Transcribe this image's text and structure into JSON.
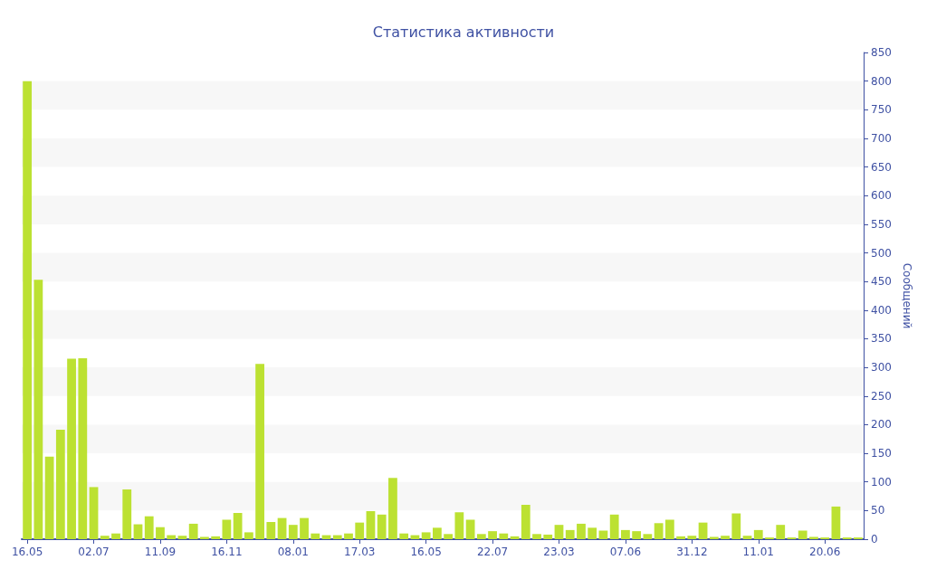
{
  "chart_data": {
    "type": "bar",
    "title": "Статистика активности",
    "ylabel": "Сообщений",
    "categories": [
      "16.05",
      null,
      null,
      null,
      null,
      null,
      "02.07",
      null,
      null,
      null,
      null,
      null,
      "11.09",
      null,
      null,
      null,
      null,
      null,
      "16.11",
      null,
      null,
      null,
      null,
      null,
      "08.01",
      null,
      null,
      null,
      null,
      null,
      "17.03",
      null,
      null,
      null,
      null,
      null,
      "16.05",
      null,
      null,
      null,
      null,
      null,
      "22.07",
      null,
      null,
      null,
      null,
      null,
      "23.03",
      null,
      null,
      null,
      null,
      null,
      "07.06",
      null,
      null,
      null,
      null,
      null,
      "31.12",
      null,
      null,
      null,
      null,
      null,
      "11.01",
      null,
      null,
      null,
      null,
      null,
      "20.06",
      null,
      null,
      null
    ],
    "values": [
      800,
      453,
      144,
      191,
      315,
      316,
      91,
      6,
      10,
      87,
      26,
      40,
      21,
      7,
      6,
      27,
      4,
      5,
      34,
      46,
      12,
      306,
      30,
      37,
      25,
      37,
      10,
      7,
      7,
      10,
      29,
      49,
      43,
      107,
      10,
      7,
      12,
      20,
      9,
      47,
      34,
      9,
      14,
      10,
      5,
      60,
      9,
      8,
      25,
      16,
      27,
      20,
      15,
      43,
      16,
      14,
      9,
      28,
      34,
      5,
      6,
      29,
      4,
      6,
      45,
      6,
      16,
      3,
      25,
      3,
      15,
      4,
      3,
      57,
      3,
      3
    ],
    "color": "#bce132",
    "ylim": [
      0,
      850
    ],
    "yticks": [
      0,
      50,
      100,
      150,
      200,
      250,
      300,
      350,
      400,
      450,
      500,
      550,
      600,
      650,
      700,
      750,
      800,
      850
    ],
    "bands": [
      {
        "axis": "y",
        "from": 50,
        "to": 100,
        "color": "#f7f7f7"
      },
      {
        "axis": "y",
        "from": 150,
        "to": 200,
        "color": "#f7f7f7"
      },
      {
        "axis": "y",
        "from": 250,
        "to": 300,
        "color": "#f7f7f7"
      },
      {
        "axis": "y",
        "from": 350,
        "to": 400,
        "color": "#f7f7f7"
      },
      {
        "axis": "y",
        "from": 450,
        "to": 500,
        "color": "#f7f7f7"
      },
      {
        "axis": "y",
        "from": 550,
        "to": 600,
        "color": "#f7f7f7"
      },
      {
        "axis": "y",
        "from": 650,
        "to": 700,
        "color": "#f7f7f7"
      },
      {
        "axis": "y",
        "from": 750,
        "to": 800,
        "color": "#f7f7f7"
      }
    ]
  }
}
